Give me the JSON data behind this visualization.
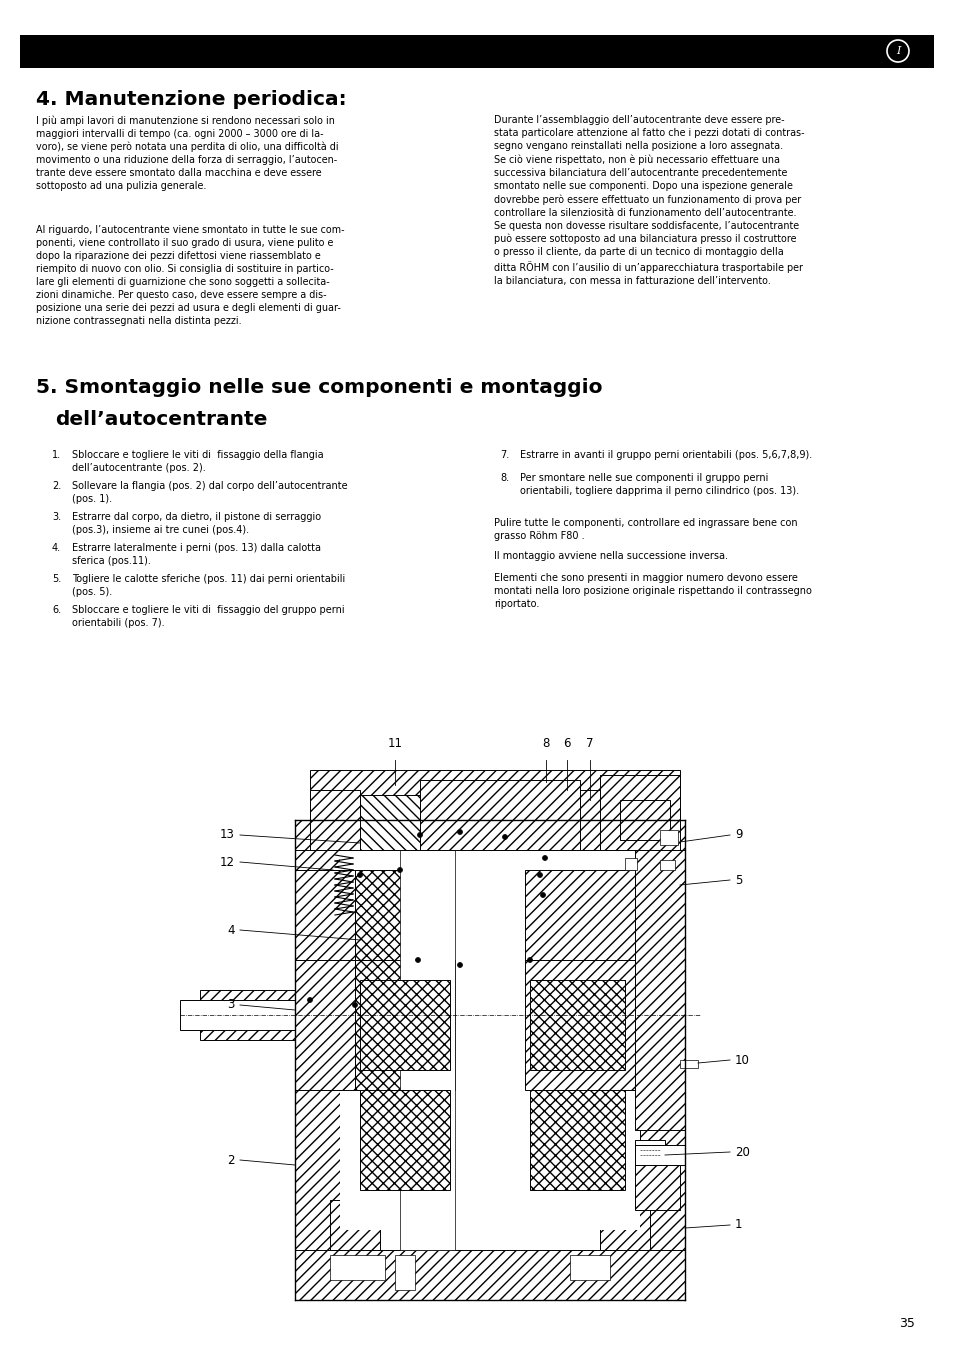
{
  "background_color": "#ffffff",
  "page_number": "35",
  "header_bar_color": "#000000",
  "header_i_text": "I",
  "section4_title": "4. Manutenzione periodica:",
  "section4_col1_p1": "I più ampi lavori di manutenzione si rendono necessari solo in\nmaggiori intervalli di tempo (ca. ogni 2000 – 3000 ore di la-\nvoro), se viene però notata una perdita di olio, una difficoltà di\nmovimento o una riduzione della forza di serraggio, l’autocen-\ntrante deve essere smontato dalla macchina e deve essere\nsottoposto ad una pulizia generale.",
  "section4_col1_p2": "Al riguardo, l’autocentrante viene smontato in tutte le sue com-\nponenti, viene controllato il suo grado di usura, viene pulito e\ndopo la riparazione dei pezzi difettosi viene riassemblato e\nriempito di nuovo con olio. Si consiglia di sostituire in partico-\nlare gli elementi di guarnizione che sono soggetti a sollecita-\nzioni dinamiche. Per questo caso, deve essere sempre a dis-\nposizione una serie dei pezzi ad usura e degli elementi di guar-\nnizione contrassegnati nella distinta pezzi.",
  "section4_col2_p1": "Durante l’assemblaggio dell’autocentrante deve essere pre-\nstata particolare attenzione al fatto che i pezzi dotati di contras-\nsegno vengano reinstallati nella posizione a loro assegnata.\nSe ciò viene rispettato, non è più necessario effettuare una\nsuccessiva bilanciatura dell’autocentrante precedentemente\nsmontato nelle sue componenti. Dopo una ispezione generale\ndovrebbe però essere effettuato un funzionamento di prova per\ncontrollare la silenziosità di funzionamento dell’autocentrante.\nSe questa non dovesse risultare soddisfacente, l’autocentrante\npuò essere sottoposto ad una bilanciatura presso il costruttore\no presso il cliente, da parte di un tecnico di montaggio della\nditta RÖHM con l’ausilio di un’apparecchiatura trasportabile per\nla bilanciatura, con messa in fatturazione dell’intervento.",
  "section5_title_line1": "5. Smontaggio nelle sue componenti e montaggio",
  "section5_title_line2": "dell’autocentrante",
  "items_col1": [
    [
      "1.",
      "Sbloccare e togliere le viti di  fissaggio della flangia\ndell’autocentrante (pos. 2)."
    ],
    [
      "2.",
      "Sollevare la flangia (pos. 2) dal corpo dell’autocentrante\n(pos. 1)."
    ],
    [
      "3.",
      "Estrarre dal corpo, da dietro, il pistone di serraggio\n(pos.3), insieme ai tre cunei (pos.4)."
    ],
    [
      "4.",
      "Estrarre lateralmente i perni (pos. 13) dalla calotta\nsferica (pos.11)."
    ],
    [
      "5.",
      "Togliere le calotte sferiche (pos. 11) dai perni orientabili\n(pos. 5)."
    ],
    [
      "6.",
      "Sbloccare e togliere le viti di  fissaggio del gruppo perni\norientabili (pos. 7)."
    ]
  ],
  "items_col2": [
    [
      "7.",
      "Estrarre in avanti il gruppo perni orientabili (pos. 5,6,7,8,9)."
    ],
    [
      "8.",
      "Per smontare nelle sue componenti il gruppo perni\norientabili, togliere dapprima il perno cilindrico (pos. 13)."
    ]
  ],
  "extra_p1": "Pulire tutte le componenti, controllare ed ingrassare bene con\ngrasso Röhm F80 .",
  "extra_p2": "Il montaggio avviene nella successione inversa.",
  "extra_p3": "Elementi che sono presenti in maggior numero devono essere\nmontati nella loro posizione originale rispettando il contrassegno\nriportato."
}
